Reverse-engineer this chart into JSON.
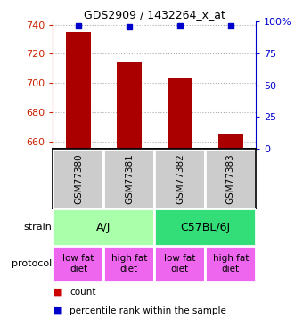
{
  "title": "GDS2909 / 1432264_x_at",
  "samples": [
    "GSM77380",
    "GSM77381",
    "GSM77382",
    "GSM77383"
  ],
  "bar_values": [
    735,
    714,
    703,
    665
  ],
  "percentile_values": [
    97,
    96,
    97,
    97
  ],
  "ylim_left": [
    655,
    742
  ],
  "ylim_right": [
    0,
    100
  ],
  "yticks_left": [
    660,
    680,
    700,
    720,
    740
  ],
  "yticks_right": [
    0,
    25,
    50,
    75,
    100
  ],
  "bar_color": "#aa0000",
  "dot_color": "#0000cc",
  "bar_width": 0.5,
  "strain_data": [
    [
      "A/J",
      0,
      1,
      "#aaffaa"
    ],
    [
      "C57BL/6J",
      2,
      3,
      "#33dd77"
    ]
  ],
  "protocol_labels": [
    "low fat\ndiet",
    "high fat\ndiet",
    "low fat\ndiet",
    "high fat\ndiet"
  ],
  "protocol_color": "#ee66ee",
  "gsm_box_color": "#cccccc",
  "legend_count_color": "#cc0000",
  "legend_dot_color": "#0000cc",
  "left_axis_color": "#cc2200",
  "right_axis_color": "#0000cc",
  "grid_color": "#aaaaaa",
  "arrow_color": "#888888",
  "fig_width": 3.4,
  "fig_height": 3.75,
  "dpi": 100
}
